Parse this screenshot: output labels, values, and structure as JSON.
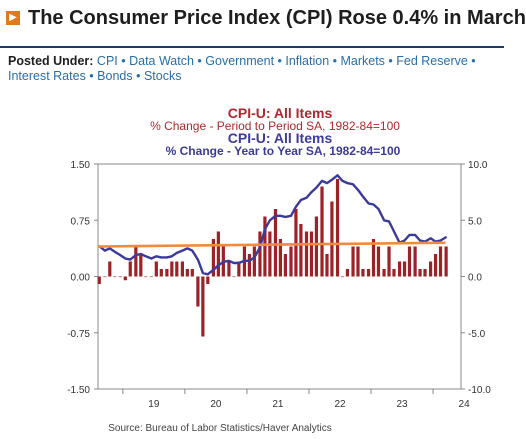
{
  "page": {
    "title": "The Consumer Price Index (CPI) Rose 0.4% in March",
    "badge_icon": "arrow-right-icon",
    "posted_under_label": "Posted Under:",
    "tags": [
      "CPI",
      "Data Watch",
      "Government",
      "Inflation",
      "Markets",
      "Fed Reserve",
      "Interest Rates",
      "Bonds",
      "Stocks"
    ],
    "separator": "•"
  },
  "colors": {
    "bar": "#9b2226",
    "line": "#3b3b9a",
    "trend": "#f08a3c",
    "title_red": "#b0282d",
    "title_blue": "#3b3b9a",
    "link": "#2a6ea8",
    "header_border": "#1f3a6e"
  },
  "chart_data": {
    "type": "bar",
    "title_1": "CPI-U: All Items",
    "subtitle_1": "% Change - Period to Period    SA, 1982-84=100",
    "title_2": "CPI-U: All Items",
    "subtitle_2": "% Change - Year to Year    SA, 1982-84=100",
    "source": "Source:  Bureau of Labor Statistics/Haver Analytics",
    "x_ticks": [
      "19",
      "20",
      "21",
      "22",
      "23",
      "24"
    ],
    "xlim": [
      2018.6,
      2024.45
    ],
    "left_axis": {
      "ticks": [
        "1.50",
        "0.75",
        "0.00",
        "-0.75",
        "-1.50"
      ],
      "ylim": [
        -1.5,
        1.5
      ]
    },
    "right_axis": {
      "ticks": [
        "10.0",
        "5.0",
        "0.0",
        "-5.0",
        "-10.0"
      ],
      "ylim": [
        -10,
        10
      ]
    },
    "grid": false,
    "series": [
      {
        "name": "% Change - Period to Period",
        "kind": "bar",
        "axis": "left",
        "x": [
          2018.62,
          2018.71,
          2018.79,
          2018.87,
          2018.96,
          2019.04,
          2019.12,
          2019.21,
          2019.29,
          2019.37,
          2019.46,
          2019.54,
          2019.62,
          2019.71,
          2019.79,
          2019.87,
          2019.96,
          2020.04,
          2020.12,
          2020.21,
          2020.29,
          2020.37,
          2020.46,
          2020.54,
          2020.62,
          2020.71,
          2020.79,
          2020.87,
          2020.96,
          2021.04,
          2021.12,
          2021.21,
          2021.29,
          2021.37,
          2021.46,
          2021.54,
          2021.62,
          2021.71,
          2021.79,
          2021.87,
          2021.96,
          2022.04,
          2022.12,
          2022.21,
          2022.29,
          2022.37,
          2022.46,
          2022.54,
          2022.62,
          2022.71,
          2022.79,
          2022.87,
          2022.96,
          2023.04,
          2023.12,
          2023.21,
          2023.29,
          2023.37,
          2023.46,
          2023.54,
          2023.62,
          2023.71,
          2023.79,
          2023.87,
          2023.96,
          2024.04,
          2024.12,
          2024.21
        ],
        "values": [
          -0.1,
          0.0,
          0.2,
          0.0,
          0.0,
          -0.05,
          0.2,
          0.4,
          0.3,
          0.0,
          0.0,
          0.2,
          0.1,
          0.1,
          0.2,
          0.2,
          0.2,
          0.1,
          0.1,
          -0.4,
          -0.8,
          -0.1,
          0.5,
          0.6,
          0.4,
          0.2,
          0.0,
          0.2,
          0.4,
          0.3,
          0.4,
          0.6,
          0.8,
          0.6,
          0.9,
          0.5,
          0.3,
          0.4,
          0.9,
          0.7,
          0.6,
          0.6,
          0.8,
          1.2,
          0.3,
          1.0,
          1.3,
          0.0,
          0.1,
          0.4,
          0.4,
          0.1,
          0.1,
          0.5,
          0.4,
          0.1,
          0.4,
          0.1,
          0.2,
          0.2,
          0.4,
          0.4,
          0.1,
          0.1,
          0.2,
          0.3,
          0.4,
          0.4
        ]
      },
      {
        "name": "% Change - Year to Year",
        "kind": "line",
        "axis": "right",
        "x": [
          2018.62,
          2018.71,
          2018.79,
          2018.87,
          2018.96,
          2019.04,
          2019.12,
          2019.21,
          2019.29,
          2019.37,
          2019.46,
          2019.54,
          2019.62,
          2019.71,
          2019.79,
          2019.87,
          2019.96,
          2020.04,
          2020.12,
          2020.21,
          2020.29,
          2020.37,
          2020.46,
          2020.54,
          2020.62,
          2020.71,
          2020.79,
          2020.87,
          2020.96,
          2021.04,
          2021.12,
          2021.21,
          2021.29,
          2021.37,
          2021.46,
          2021.54,
          2021.62,
          2021.71,
          2021.79,
          2021.87,
          2021.96,
          2022.04,
          2022.12,
          2022.21,
          2022.29,
          2022.37,
          2022.46,
          2022.54,
          2022.62,
          2022.71,
          2022.79,
          2022.87,
          2022.96,
          2023.04,
          2023.12,
          2023.21,
          2023.29,
          2023.37,
          2023.46,
          2023.54,
          2023.62,
          2023.71,
          2023.79,
          2023.87,
          2023.96,
          2024.04,
          2024.12,
          2024.21
        ],
        "values": [
          2.7,
          2.3,
          2.5,
          2.2,
          1.9,
          1.6,
          1.5,
          1.9,
          2.0,
          1.8,
          1.6,
          1.8,
          1.7,
          1.7,
          1.8,
          2.1,
          2.3,
          2.5,
          2.3,
          1.5,
          0.3,
          0.2,
          0.6,
          1.0,
          1.3,
          1.4,
          1.2,
          1.2,
          1.4,
          1.4,
          1.7,
          2.6,
          4.2,
          5.0,
          5.4,
          5.4,
          5.3,
          5.4,
          6.2,
          6.8,
          7.0,
          7.5,
          7.9,
          8.5,
          8.3,
          8.6,
          9.0,
          8.5,
          8.3,
          8.2,
          7.7,
          7.1,
          6.5,
          6.4,
          6.0,
          5.0,
          4.9,
          4.0,
          3.0,
          3.2,
          3.7,
          3.7,
          3.2,
          3.1,
          3.4,
          3.1,
          3.2,
          3.5
        ]
      },
      {
        "name": "trend",
        "kind": "line",
        "axis": "left",
        "x": [
          2018.6,
          2024.2
        ],
        "values": [
          0.4,
          0.45
        ]
      }
    ]
  }
}
